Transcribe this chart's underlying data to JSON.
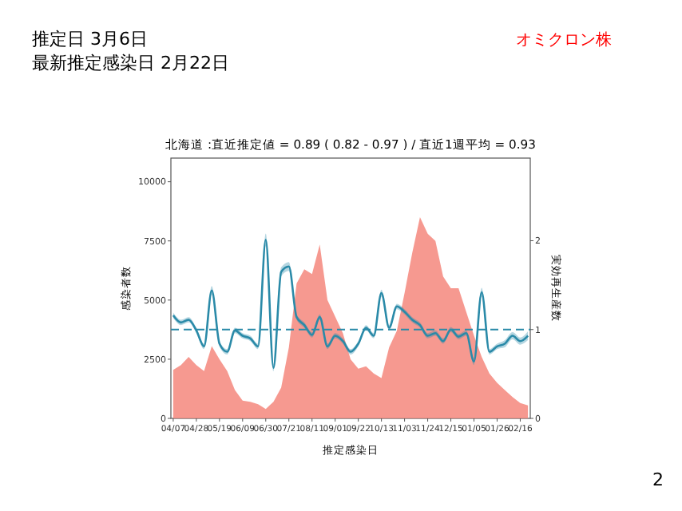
{
  "chart_data": {
    "type": "area",
    "title": "北海道 :直近推定値 = 0.89 ( 0.82 - 0.97 ) / 直近1週平均 = 0.93",
    "xlabel": "推定感染日",
    "ylabel": "感染者数",
    "y2label": "実効再生産数",
    "annotations": [
      "推定日  3月6日",
      "最新推定感染日  2月22日",
      "オミクロン株",
      "2"
    ],
    "categories": [
      "04/07",
      null,
      null,
      "04/28",
      null,
      null,
      "05/19",
      null,
      null,
      "06/09",
      null,
      null,
      "06/30",
      null,
      null,
      "07/21",
      null,
      null,
      "08/11",
      null,
      null,
      "09/01",
      null,
      null,
      "09/22",
      null,
      null,
      "10/13",
      null,
      null,
      "11/03",
      null,
      null,
      "11/24",
      null,
      null,
      "12/15",
      null,
      null,
      "01/05",
      null,
      null,
      "01/26",
      null,
      null,
      "02/16",
      null
    ],
    "ylim": [
      0,
      11000
    ],
    "yticks": [
      0,
      2500,
      5000,
      7500,
      10000
    ],
    "y2lim": [
      0,
      2.93
    ],
    "y2ticks": [
      0,
      1,
      2
    ],
    "ref_lines": [
      {
        "axis": "y2",
        "value": 1,
        "color": "#2a8aa8",
        "line_style": "dashed"
      }
    ],
    "series": [
      {
        "color": "#f4877d",
        "values": [
          2050,
          2250,
          2600,
          2250,
          2000,
          3050,
          2500,
          2000,
          1200,
          750,
          700,
          600,
          400,
          700,
          1300,
          3000,
          5700,
          6300,
          6100,
          7350,
          5000,
          4300,
          3600,
          2500,
          2100,
          2200,
          1900,
          1700,
          3000,
          3700,
          5300,
          7000,
          8500,
          7800,
          7500,
          6000,
          5500,
          5500,
          4500,
          3500,
          2600,
          1900,
          1500,
          1200,
          900,
          650,
          550
        ]
      },
      {
        "type": "line",
        "axis": "y2",
        "color": "#2a8aa8",
        "values": [
          1.16,
          1.08,
          1.11,
          0.99,
          0.81,
          1.44,
          0.84,
          0.75,
          0.99,
          0.93,
          0.9,
          0.81,
          2.01,
          0.57,
          1.65,
          1.71,
          1.14,
          1.05,
          0.94,
          1.14,
          0.81,
          0.93,
          0.87,
          0.75,
          0.84,
          1.02,
          0.93,
          1.41,
          1.02,
          1.26,
          1.2,
          1.11,
          1.05,
          0.93,
          0.96,
          0.87,
          1.0,
          0.92,
          0.96,
          0.64,
          1.42,
          0.75,
          0.81,
          0.84,
          0.93,
          0.87,
          0.93
        ],
        "lower": [
          1.13,
          1.05,
          1.08,
          0.96,
          0.78,
          1.39,
          0.81,
          0.72,
          0.96,
          0.9,
          0.87,
          0.78,
          1.94,
          0.53,
          1.6,
          1.66,
          1.11,
          1.02,
          0.91,
          1.11,
          0.78,
          0.9,
          0.84,
          0.72,
          0.81,
          0.99,
          0.9,
          1.37,
          0.99,
          1.23,
          1.17,
          1.08,
          1.02,
          0.9,
          0.93,
          0.84,
          0.97,
          0.89,
          0.93,
          0.6,
          1.37,
          0.72,
          0.78,
          0.8,
          0.89,
          0.83,
          0.88
        ],
        "upper": [
          1.19,
          1.11,
          1.14,
          1.02,
          0.84,
          1.49,
          0.87,
          0.78,
          1.02,
          0.96,
          0.93,
          0.84,
          2.08,
          0.61,
          1.7,
          1.76,
          1.17,
          1.08,
          0.97,
          1.17,
          0.84,
          0.96,
          0.9,
          0.78,
          0.87,
          1.05,
          0.96,
          1.45,
          1.05,
          1.29,
          1.23,
          1.14,
          1.08,
          0.96,
          0.99,
          0.9,
          1.03,
          0.95,
          0.99,
          0.68,
          1.47,
          0.78,
          0.84,
          0.88,
          0.97,
          0.91,
          0.98
        ]
      }
    ]
  }
}
